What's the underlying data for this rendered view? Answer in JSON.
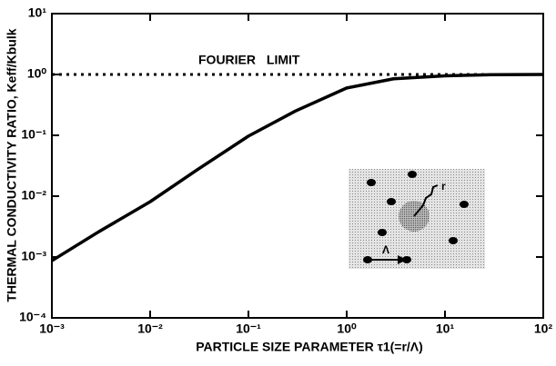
{
  "chart_data": {
    "type": "line",
    "xlabel": "PARTICLE SIZE PARAMETER τ1(=r/Λ)",
    "ylabel": "THERMAL CONDUCTIVITY RATIO, Keff/Kbulk",
    "x": [
      0.001,
      0.003,
      0.01,
      0.03,
      0.1,
      0.3,
      1,
      3,
      10,
      30,
      100
    ],
    "series": [
      {
        "color": "#000000",
        "values": [
          0.00087,
          0.0026,
          0.0081,
          0.027,
          0.097,
          0.25,
          0.6,
          0.85,
          0.95,
          0.99,
          1
        ]
      }
    ],
    "xscale": "log",
    "yscale": "log",
    "xlim": [
      0.001,
      100
    ],
    "ylim": [
      0.0001,
      10
    ],
    "xticks": [
      {
        "value": 0.001,
        "label": "10⁻³"
      },
      {
        "value": 0.01,
        "label": "10⁻²"
      },
      {
        "value": 0.1,
        "label": "10⁻¹"
      },
      {
        "value": 1,
        "label": "10⁰"
      },
      {
        "value": 10,
        "label": "10¹"
      },
      {
        "value": 100,
        "label": "10²"
      }
    ],
    "yticks": [
      {
        "value": 0.0001,
        "label": "10⁻⁴"
      },
      {
        "value": 0.001,
        "label": "10⁻³"
      },
      {
        "value": 0.01,
        "label": "10⁻²"
      },
      {
        "value": 0.1,
        "label": "10⁻¹"
      },
      {
        "value": 1,
        "label": "10⁰"
      },
      {
        "value": 10,
        "label": "10¹"
      }
    ],
    "reference_line": {
      "value": 1,
      "label": "FOURIER LIMIT"
    },
    "inset_labels": [
      "r",
      "Λ"
    ]
  }
}
